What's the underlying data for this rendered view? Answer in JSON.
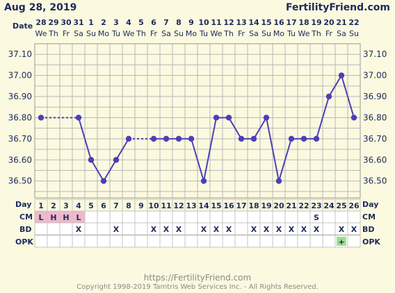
{
  "header": {
    "date": "Aug 28, 2019",
    "brand": "FertilityFriend.com"
  },
  "labels": {
    "date_row": "Date",
    "day_row": "Day",
    "cm_row": "CM",
    "bd_row": "BD",
    "opk_row": "OPK"
  },
  "footer": {
    "url": "https://FertilityFriend.com",
    "copyright": "Copyright 1998-2019 Tamtris Web Services Inc. - All Rights Reserved."
  },
  "colors": {
    "line": "#4a3fb8",
    "point": "#4a3fb8",
    "grid": "#b8b8b8",
    "plot_bg": "#fbf9df",
    "table_bg": "#ffffff",
    "cm_highlight": "#f0b8cc",
    "opk_positive": "#9ee08e"
  },
  "chart_data": {
    "type": "line",
    "cycle_days": [
      1,
      2,
      3,
      4,
      5,
      6,
      7,
      8,
      9,
      10,
      11,
      12,
      13,
      14,
      15,
      16,
      17,
      18,
      19,
      20,
      21,
      22,
      23,
      24,
      25,
      26
    ],
    "dates": [
      "28",
      "29",
      "30",
      "31",
      "1",
      "2",
      "3",
      "4",
      "5",
      "6",
      "7",
      "8",
      "9",
      "10",
      "11",
      "12",
      "13",
      "14",
      "15",
      "16",
      "17",
      "18",
      "19",
      "20",
      "21",
      "22"
    ],
    "weekdays": [
      "We",
      "Th",
      "Fr",
      "Sa",
      "Su",
      "Mo",
      "Tu",
      "We",
      "Th",
      "Fr",
      "Sa",
      "Su",
      "Mo",
      "Tu",
      "We",
      "Th",
      "Fr",
      "Sa",
      "Su",
      "Mo",
      "Tu",
      "We",
      "Th",
      "Fr",
      "Sa",
      "Su"
    ],
    "temperatures": [
      36.8,
      null,
      null,
      36.8,
      36.6,
      36.5,
      36.6,
      36.7,
      null,
      36.7,
      36.7,
      36.7,
      36.7,
      36.5,
      36.8,
      36.8,
      36.7,
      36.7,
      36.8,
      36.5,
      36.7,
      36.7,
      36.7,
      36.9,
      37.0,
      36.8
    ],
    "dotted_segments": [
      [
        1,
        4
      ],
      [
        8,
        10
      ]
    ],
    "y_ticks": [
      "37.10",
      "37.00",
      "36.90",
      "36.80",
      "36.70",
      "36.60",
      "36.50"
    ],
    "ylim": [
      36.42,
      37.15
    ],
    "cm": [
      "L",
      "H",
      "H",
      "L",
      "",
      "",
      "",
      "",
      "",
      "",
      "",
      "",
      "",
      "",
      "",
      "",
      "",
      "",
      "",
      "",
      "",
      "",
      "S",
      "",
      "",
      ""
    ],
    "bd": [
      "",
      "",
      "",
      "X",
      "",
      "",
      "X",
      "",
      "",
      "X",
      "X",
      "X",
      "",
      "X",
      "X",
      "X",
      "",
      "X",
      "X",
      "X",
      "X",
      "X",
      "X",
      "",
      "X",
      "X"
    ],
    "opk": [
      "",
      "",
      "",
      "",
      "",
      "",
      "",
      "",
      "",
      "",
      "",
      "",
      "",
      "",
      "",
      "",
      "",
      "",
      "",
      "",
      "",
      "",
      "",
      "",
      "+",
      ""
    ]
  }
}
